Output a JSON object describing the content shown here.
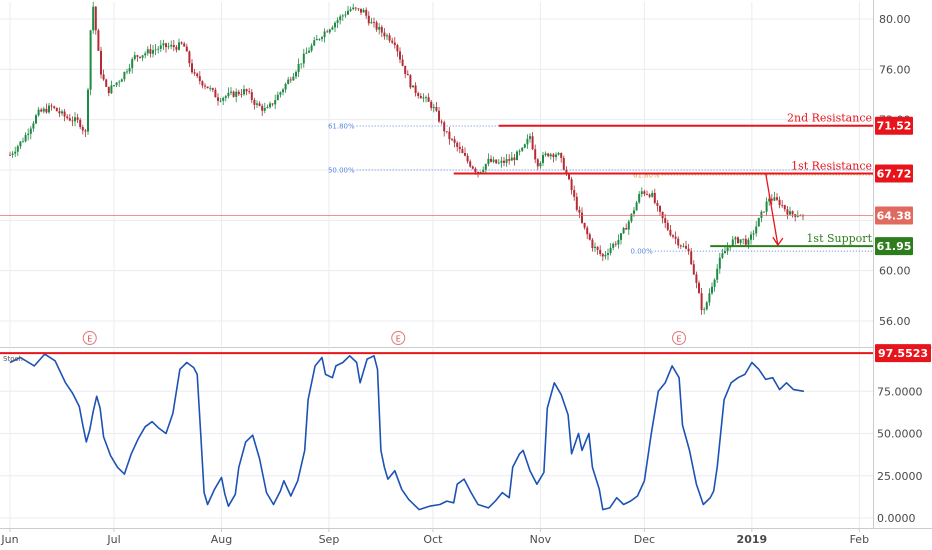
{
  "chart_data": {
    "type": "candlestick",
    "y_ticks": [
      "80.00",
      "76.00",
      "72.00",
      "68.00",
      "64.00",
      "60.00",
      "56.00"
    ],
    "y_tick_values": [
      80,
      76,
      72,
      68,
      64,
      60,
      56
    ],
    "ylim": [
      55.0,
      81.0
    ],
    "x_ticks": [
      "Jun",
      "Jul",
      "Aug",
      "Sep",
      "Oct",
      "Nov",
      "Dec",
      "2019",
      "Feb"
    ],
    "x_tick_days": [
      0,
      30,
      61,
      92,
      122,
      153,
      183,
      214,
      245
    ],
    "xlim": [
      0,
      252
    ],
    "price_anchors": [
      [
        0,
        69.2
      ],
      [
        4,
        70.5
      ],
      [
        8,
        72.5
      ],
      [
        12,
        73.0
      ],
      [
        16,
        72.2
      ],
      [
        20,
        71.8
      ],
      [
        22,
        70.8
      ],
      [
        23,
        78.5
      ],
      [
        24,
        81.0
      ],
      [
        26,
        76.0
      ],
      [
        28,
        74.2
      ],
      [
        32,
        75.3
      ],
      [
        36,
        77.0
      ],
      [
        40,
        77.4
      ],
      [
        44,
        77.8
      ],
      [
        48,
        77.8
      ],
      [
        50,
        78.0
      ],
      [
        53,
        75.5
      ],
      [
        57,
        74.6
      ],
      [
        60,
        73.7
      ],
      [
        64,
        74.0
      ],
      [
        68,
        74.3
      ],
      [
        71,
        73.2
      ],
      [
        74,
        72.7
      ],
      [
        78,
        74.2
      ],
      [
        82,
        75.8
      ],
      [
        86,
        77.5
      ],
      [
        90,
        78.8
      ],
      [
        94,
        79.8
      ],
      [
        98,
        80.8
      ],
      [
        102,
        80.6
      ],
      [
        104,
        79.7
      ],
      [
        108,
        78.8
      ],
      [
        111,
        78.2
      ],
      [
        113,
        76.5
      ],
      [
        116,
        74.5
      ],
      [
        119,
        73.8
      ],
      [
        122,
        73.0
      ],
      [
        126,
        70.8
      ],
      [
        129,
        69.8
      ],
      [
        132,
        68.7
      ],
      [
        135,
        67.8
      ],
      [
        138,
        68.7
      ],
      [
        141,
        68.5
      ],
      [
        145,
        68.9
      ],
      [
        148,
        69.6
      ],
      [
        150,
        70.7
      ],
      [
        152,
        68.5
      ],
      [
        155,
        69.3
      ],
      [
        158,
        69.3
      ],
      [
        160,
        68.1
      ],
      [
        162,
        66.4
      ],
      [
        165,
        63.7
      ],
      [
        168,
        62.0
      ],
      [
        171,
        61.1
      ],
      [
        173,
        61.8
      ],
      [
        176,
        62.6
      ],
      [
        179,
        64.2
      ],
      [
        182,
        66.3
      ],
      [
        185,
        66.1
      ],
      [
        187,
        64.7
      ],
      [
        190,
        63.2
      ],
      [
        193,
        62.2
      ],
      [
        196,
        61.4
      ],
      [
        198,
        58.9
      ],
      [
        200,
        56.5
      ],
      [
        202,
        58.5
      ],
      [
        205,
        61.0
      ],
      [
        208,
        62.3
      ],
      [
        211,
        62.5
      ],
      [
        213,
        62.2
      ],
      [
        216,
        64.0
      ],
      [
        219,
        65.8
      ],
      [
        222,
        65.4
      ],
      [
        225,
        64.5
      ],
      [
        228,
        64.5
      ],
      [
        229,
        64.38
      ]
    ],
    "price_days_last": 229,
    "stoch_ticks": [
      "97.5523",
      "75.0000",
      "50.0000",
      "25.0000",
      "0.0000"
    ],
    "stoch_tick_values": [
      97.5523,
      75,
      50,
      25,
      0
    ],
    "stoch_ylim": [
      0,
      100
    ],
    "stoch_line": [
      [
        0,
        92
      ],
      [
        3,
        95
      ],
      [
        7,
        90
      ],
      [
        10,
        97
      ],
      [
        13,
        93
      ],
      [
        16,
        80
      ],
      [
        18,
        74
      ],
      [
        20,
        66
      ],
      [
        21,
        55
      ],
      [
        22,
        45
      ],
      [
        23,
        52
      ],
      [
        24,
        63
      ],
      [
        25,
        72
      ],
      [
        26,
        65
      ],
      [
        27,
        48
      ],
      [
        29,
        37
      ],
      [
        31,
        30
      ],
      [
        33,
        26
      ],
      [
        35,
        38
      ],
      [
        37,
        47
      ],
      [
        39,
        54
      ],
      [
        41,
        57
      ],
      [
        43,
        53
      ],
      [
        45,
        50
      ],
      [
        47,
        62
      ],
      [
        49,
        88
      ],
      [
        51,
        92
      ],
      [
        53,
        89
      ],
      [
        54,
        85
      ],
      [
        55,
        50
      ],
      [
        56,
        15
      ],
      [
        57,
        8
      ],
      [
        59,
        17
      ],
      [
        61,
        24
      ],
      [
        62,
        14
      ],
      [
        63,
        7
      ],
      [
        65,
        14
      ],
      [
        66,
        30
      ],
      [
        68,
        45
      ],
      [
        70,
        49
      ],
      [
        72,
        35
      ],
      [
        74,
        15
      ],
      [
        76,
        8
      ],
      [
        78,
        16
      ],
      [
        79,
        22
      ],
      [
        81,
        13
      ],
      [
        83,
        22
      ],
      [
        85,
        40
      ],
      [
        86,
        70
      ],
      [
        88,
        90
      ],
      [
        90,
        95
      ],
      [
        91,
        85
      ],
      [
        93,
        83
      ],
      [
        94,
        90
      ],
      [
        96,
        92
      ],
      [
        98,
        96
      ],
      [
        100,
        92
      ],
      [
        101,
        80
      ],
      [
        103,
        94
      ],
      [
        105,
        96
      ],
      [
        106,
        88
      ],
      [
        107,
        40
      ],
      [
        108,
        30
      ],
      [
        109,
        23
      ],
      [
        111,
        28
      ],
      [
        113,
        17
      ],
      [
        115,
        11
      ],
      [
        118,
        5
      ],
      [
        121,
        7
      ],
      [
        124,
        8
      ],
      [
        126,
        10
      ],
      [
        128,
        9
      ],
      [
        129,
        20
      ],
      [
        131,
        23
      ],
      [
        133,
        15
      ],
      [
        135,
        8
      ],
      [
        138,
        6
      ],
      [
        140,
        10
      ],
      [
        142,
        15
      ],
      [
        144,
        12
      ],
      [
        145,
        30
      ],
      [
        147,
        38
      ],
      [
        148,
        40
      ],
      [
        150,
        28
      ],
      [
        152,
        20
      ],
      [
        154,
        27
      ],
      [
        155,
        65
      ],
      [
        157,
        80
      ],
      [
        159,
        73
      ],
      [
        161,
        61
      ],
      [
        162,
        38
      ],
      [
        164,
        50
      ],
      [
        165,
        40
      ],
      [
        167,
        50
      ],
      [
        168,
        30
      ],
      [
        170,
        17
      ],
      [
        171,
        5
      ],
      [
        173,
        6
      ],
      [
        175,
        12
      ],
      [
        177,
        8
      ],
      [
        179,
        10
      ],
      [
        181,
        13
      ],
      [
        183,
        22
      ],
      [
        185,
        50
      ],
      [
        187,
        75
      ],
      [
        189,
        80
      ],
      [
        191,
        90
      ],
      [
        193,
        83
      ],
      [
        194,
        55
      ],
      [
        196,
        40
      ],
      [
        198,
        20
      ],
      [
        200,
        8
      ],
      [
        202,
        12
      ],
      [
        203,
        16
      ],
      [
        204,
        30
      ],
      [
        206,
        70
      ],
      [
        208,
        80
      ],
      [
        210,
        83
      ],
      [
        212,
        85
      ],
      [
        214,
        92
      ],
      [
        216,
        88
      ],
      [
        218,
        82
      ],
      [
        220,
        83
      ],
      [
        222,
        76
      ],
      [
        224,
        80
      ],
      [
        226,
        76
      ],
      [
        229,
        75
      ]
    ],
    "levels": [
      {
        "label": "2nd Resistance",
        "value": 71.52,
        "tag": "71.52",
        "color": "#e8141c",
        "x_start": 141
      },
      {
        "label": "1st Resistance",
        "value": 67.72,
        "tag": "67.72",
        "color": "#e8141c",
        "x_start": 128
      },
      {
        "label": "1st Support",
        "value": 61.95,
        "tag": "61.95",
        "color": "#2e7d1d",
        "x_start": 202
      }
    ],
    "current_price": {
      "tag": "64.38",
      "value": 64.38,
      "color": "#e06a60"
    },
    "stoch_level": {
      "tag": "97.5523",
      "value": 97.5523,
      "color": "#e8141c"
    },
    "fib_levels": [
      {
        "label": "61.80%",
        "value": 71.5,
        "x_start": 100,
        "x_end": 240,
        "color": "#5b85e0"
      },
      {
        "label": "50.00%",
        "value": 68.0,
        "x_start": 100,
        "x_end": 240,
        "color": "#5b85e0"
      },
      {
        "label": "61.80%",
        "value": 67.6,
        "x_start": 188,
        "x_end": 240,
        "color": "#e2a33a"
      },
      {
        "label": "0.00%",
        "value": 61.55,
        "x_start": 186,
        "x_end": 240,
        "color": "#5b85e0"
      }
    ],
    "earnings_markers": [
      {
        "label": "E",
        "day": 23
      },
      {
        "label": "E",
        "day": 112
      },
      {
        "label": "E",
        "day": 193
      }
    ],
    "stoch_title": "Stoch",
    "arrow": {
      "from_day": 218,
      "from_value": 67.72,
      "to_day": 221.5,
      "to_value": 61.95,
      "color": "#e8141c"
    },
    "colors": {
      "up": "#1e8a43",
      "down": "#b32b34",
      "stoch": "#1d52b5",
      "grid": "#eaecef",
      "axis_text": "#4a4a4a"
    }
  }
}
